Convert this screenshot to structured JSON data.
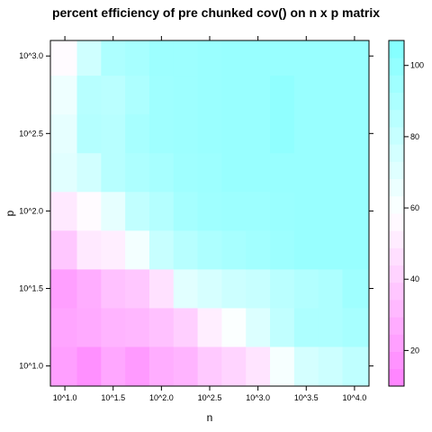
{
  "chart_data": {
    "type": "heatmap",
    "title": "percent efficiency of pre chunked cov() on n x p matrix",
    "xlabel": "n",
    "ylabel": "p",
    "x_ticks": [
      "10^1.0",
      "10^1.5",
      "10^2.0",
      "10^2.5",
      "10^3.0",
      "10^3.5",
      "10^4.0"
    ],
    "y_ticks": [
      "10^1.0",
      "10^1.5",
      "10^2.0",
      "10^2.5",
      "10^3.0"
    ],
    "x_tick_values": [
      1.0,
      1.5,
      2.0,
      2.5,
      3.0,
      3.5,
      4.0
    ],
    "y_tick_values": [
      1.0,
      1.5,
      2.0,
      2.5,
      3.0
    ],
    "x_centers": [
      1.0,
      1.25,
      1.5,
      1.75,
      2.0,
      2.25,
      2.5,
      2.75,
      3.0,
      3.25,
      3.5,
      3.75,
      4.0
    ],
    "y_centers": [
      1.0,
      1.25,
      1.5,
      1.75,
      2.0,
      2.25,
      2.5,
      2.75,
      3.0
    ],
    "xlim": [
      0.85,
      4.15
    ],
    "ylim": [
      0.87,
      3.1
    ],
    "values": [
      [
        22,
        16,
        25,
        20,
        27,
        30,
        38,
        42,
        48,
        62,
        75,
        78,
        83
      ],
      [
        24,
        26,
        30,
        31,
        35,
        40,
        52,
        60,
        72,
        82,
        90,
        90,
        92
      ],
      [
        22,
        27,
        35,
        37,
        47,
        70,
        74,
        78,
        80,
        85,
        88,
        90,
        95
      ],
      [
        37,
        50,
        52,
        63,
        80,
        86,
        90,
        92,
        94,
        96,
        98,
        98,
        98
      ],
      [
        50,
        57,
        68,
        82,
        87,
        93,
        95,
        96,
        96,
        97,
        98,
        98,
        98
      ],
      [
        70,
        76,
        86,
        90,
        92,
        95,
        96,
        98,
        98,
        98,
        98,
        98,
        98
      ],
      [
        68,
        87,
        86,
        92,
        95,
        96,
        97,
        98,
        98,
        101,
        98,
        98,
        98
      ],
      [
        65,
        86,
        85,
        90,
        95,
        96,
        97,
        98,
        98,
        101,
        98,
        98,
        98
      ],
      [
        57,
        77,
        90,
        92,
        96,
        96,
        97,
        98,
        98,
        98,
        98,
        98,
        98
      ]
    ],
    "colorbar": {
      "min": 10,
      "max": 107,
      "ticks": [
        20,
        40,
        60,
        80,
        100
      ]
    },
    "colors": {
      "low": "#ff80ff",
      "mid": "#ffffff",
      "high": "#80ffff"
    }
  }
}
